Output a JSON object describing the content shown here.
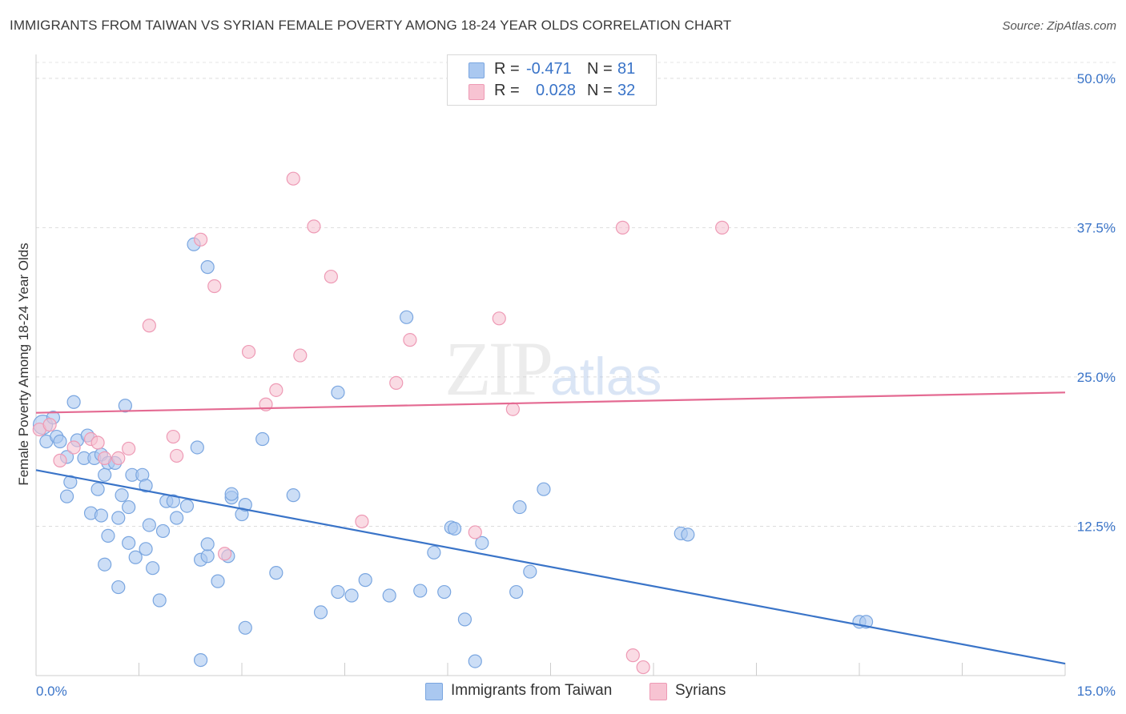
{
  "header": {
    "title": "IMMIGRANTS FROM TAIWAN VS SYRIAN FEMALE POVERTY AMONG 18-24 YEAR OLDS CORRELATION CHART",
    "source": "Source: ZipAtlas.com"
  },
  "watermark": {
    "zip": "ZIP",
    "atlas": "atlas"
  },
  "legend": {
    "rows": [
      {
        "r_label": "R =",
        "r_value": "-0.471",
        "n_label": "N =",
        "n_value": "81",
        "color": "#aac8f0",
        "border": "#7aa6e0"
      },
      {
        "r_label": "R =",
        "r_value": "0.028",
        "n_label": "N =",
        "n_value": "32",
        "color": "#f7c3d2",
        "border": "#ee9ab5"
      }
    ],
    "bottom": [
      {
        "label": "Immigrants from Taiwan",
        "color": "#aac8f0",
        "border": "#7aa6e0"
      },
      {
        "label": "Syrians",
        "color": "#f7c3d2",
        "border": "#ee9ab5"
      }
    ]
  },
  "chart_data": {
    "type": "scatter",
    "title": "IMMIGRANTS FROM TAIWAN VS SYRIAN FEMALE POVERTY AMONG 18-24 YEAR OLDS CORRELATION CHART",
    "ylabel": "Female Poverty Among 18-24 Year Olds",
    "xlim": [
      0,
      15
    ],
    "ylim": [
      0,
      52
    ],
    "x_tick_labels": [
      "0.0%",
      "15.0%"
    ],
    "y_ticks": [
      12.5,
      25.0,
      37.5,
      50.0
    ],
    "y_tick_labels": [
      "12.5%",
      "25.0%",
      "37.5%",
      "50.0%"
    ],
    "grid": true,
    "series": [
      {
        "name": "Immigrants from Taiwan",
        "color": "#aac8f0",
        "edge": "#7aa6e0",
        "trend_color": "#3a74c8",
        "trend": [
          [
            0,
            17.2
          ],
          [
            15,
            1.0
          ]
        ],
        "points": [
          [
            0.1,
            21.0
          ],
          [
            0.25,
            21.6
          ],
          [
            0.15,
            19.6
          ],
          [
            0.3,
            20.0
          ],
          [
            0.35,
            19.6
          ],
          [
            0.45,
            18.3
          ],
          [
            0.55,
            22.9
          ],
          [
            0.6,
            19.7
          ],
          [
            0.75,
            20.1
          ],
          [
            0.7,
            18.2
          ],
          [
            0.85,
            18.2
          ],
          [
            0.95,
            18.5
          ],
          [
            1.05,
            17.8
          ],
          [
            1.0,
            16.8
          ],
          [
            1.15,
            17.8
          ],
          [
            1.3,
            22.6
          ],
          [
            1.4,
            16.8
          ],
          [
            1.55,
            16.8
          ],
          [
            1.6,
            15.9
          ],
          [
            0.9,
            15.6
          ],
          [
            0.8,
            13.6
          ],
          [
            0.95,
            13.4
          ],
          [
            0.45,
            15.0
          ],
          [
            1.05,
            11.7
          ],
          [
            1.2,
            13.2
          ],
          [
            1.35,
            11.1
          ],
          [
            1.45,
            9.9
          ],
          [
            1.6,
            10.6
          ],
          [
            1.25,
            15.1
          ],
          [
            1.35,
            14.1
          ],
          [
            1.9,
            14.6
          ],
          [
            2.0,
            14.6
          ],
          [
            2.05,
            13.2
          ],
          [
            1.65,
            12.6
          ],
          [
            1.85,
            12.1
          ],
          [
            1.7,
            9.0
          ],
          [
            1.2,
            7.4
          ],
          [
            1.0,
            9.3
          ],
          [
            1.8,
            6.3
          ],
          [
            2.4,
            9.7
          ],
          [
            2.5,
            10.0
          ],
          [
            2.5,
            11.0
          ],
          [
            2.65,
            7.9
          ],
          [
            2.85,
            14.9
          ],
          [
            3.0,
            13.5
          ],
          [
            2.85,
            15.2
          ],
          [
            2.35,
            19.1
          ],
          [
            3.3,
            19.8
          ],
          [
            3.5,
            8.6
          ],
          [
            3.75,
            15.1
          ],
          [
            3.05,
            4.0
          ],
          [
            2.4,
            1.3
          ],
          [
            4.15,
            5.3
          ],
          [
            4.4,
            7.0
          ],
          [
            4.6,
            6.7
          ],
          [
            4.8,
            8.0
          ],
          [
            5.15,
            6.7
          ],
          [
            5.4,
            30.0
          ],
          [
            5.6,
            7.1
          ],
          [
            5.95,
            7.0
          ],
          [
            6.05,
            12.4
          ],
          [
            6.1,
            12.3
          ],
          [
            5.8,
            10.3
          ],
          [
            6.5,
            11.1
          ],
          [
            6.25,
            4.7
          ],
          [
            7.05,
            14.1
          ],
          [
            7.2,
            8.7
          ],
          [
            7.0,
            7.0
          ],
          [
            7.4,
            15.6
          ],
          [
            9.4,
            11.9
          ],
          [
            9.5,
            11.8
          ],
          [
            12.0,
            4.5
          ],
          [
            12.1,
            4.5
          ],
          [
            6.4,
            1.2
          ],
          [
            2.3,
            36.1
          ],
          [
            2.5,
            34.2
          ],
          [
            4.4,
            23.7
          ],
          [
            3.05,
            14.3
          ],
          [
            2.2,
            14.2
          ],
          [
            2.8,
            10.0
          ],
          [
            0.5,
            16.2
          ]
        ]
      },
      {
        "name": "Syrians",
        "color": "#f7c3d2",
        "edge": "#ee9ab5",
        "trend_color": "#e46a92",
        "trend": [
          [
            0,
            22.0
          ],
          [
            15,
            23.7
          ]
        ],
        "points": [
          [
            0.05,
            20.6
          ],
          [
            0.2,
            21.0
          ],
          [
            0.35,
            18.0
          ],
          [
            0.55,
            19.1
          ],
          [
            0.8,
            19.8
          ],
          [
            0.9,
            19.5
          ],
          [
            1.0,
            18.2
          ],
          [
            1.2,
            18.2
          ],
          [
            1.35,
            19.0
          ],
          [
            1.65,
            29.3
          ],
          [
            2.0,
            20.0
          ],
          [
            2.05,
            18.4
          ],
          [
            2.4,
            36.5
          ],
          [
            2.6,
            32.6
          ],
          [
            2.75,
            10.2
          ],
          [
            3.1,
            27.1
          ],
          [
            3.35,
            22.7
          ],
          [
            3.5,
            23.9
          ],
          [
            3.75,
            41.6
          ],
          [
            3.85,
            26.8
          ],
          [
            4.05,
            37.6
          ],
          [
            4.3,
            33.4
          ],
          [
            4.75,
            12.9
          ],
          [
            5.25,
            24.5
          ],
          [
            5.45,
            28.1
          ],
          [
            6.4,
            12.0
          ],
          [
            6.75,
            29.9
          ],
          [
            6.95,
            22.3
          ],
          [
            8.55,
            37.5
          ],
          [
            10.0,
            37.5
          ],
          [
            8.7,
            1.7
          ],
          [
            8.85,
            0.7
          ]
        ]
      }
    ]
  }
}
